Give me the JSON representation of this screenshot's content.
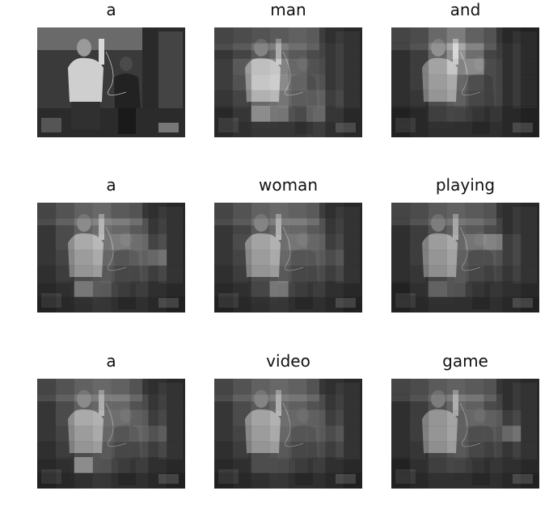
{
  "panels": [
    {
      "word": "a",
      "weights": null
    },
    {
      "word": "man",
      "weights": [
        [
          0.15,
          0.2,
          0.25,
          0.3,
          0.35,
          0.3,
          0.2,
          0.15
        ],
        [
          0.2,
          0.3,
          0.45,
          0.55,
          0.45,
          0.35,
          0.25,
          0.15
        ],
        [
          0.25,
          0.45,
          0.7,
          0.75,
          0.55,
          0.4,
          0.25,
          0.15
        ],
        [
          0.25,
          0.4,
          0.75,
          0.8,
          0.6,
          0.45,
          0.25,
          0.15
        ],
        [
          0.2,
          0.3,
          0.6,
          0.65,
          0.55,
          0.55,
          0.3,
          0.15
        ],
        [
          0.15,
          0.25,
          0.85,
          0.7,
          0.45,
          0.6,
          0.25,
          0.15
        ],
        [
          0.15,
          0.2,
          0.25,
          0.25,
          0.25,
          0.3,
          0.2,
          0.15
        ]
      ]
    },
    {
      "word": "and",
      "weights": [
        [
          0.15,
          0.2,
          0.4,
          0.55,
          0.35,
          0.25,
          0.15,
          0.1
        ],
        [
          0.15,
          0.25,
          0.55,
          0.85,
          0.6,
          0.3,
          0.2,
          0.1
        ],
        [
          0.15,
          0.25,
          0.5,
          0.75,
          0.8,
          0.35,
          0.2,
          0.1
        ],
        [
          0.15,
          0.25,
          0.45,
          0.55,
          0.45,
          0.35,
          0.2,
          0.1
        ],
        [
          0.15,
          0.2,
          0.4,
          0.5,
          0.4,
          0.35,
          0.2,
          0.1
        ],
        [
          0.1,
          0.15,
          0.3,
          0.35,
          0.3,
          0.25,
          0.15,
          0.1
        ],
        [
          0.1,
          0.15,
          0.2,
          0.2,
          0.2,
          0.2,
          0.15,
          0.1
        ]
      ]
    },
    {
      "word": "a",
      "weights": [
        [
          0.15,
          0.25,
          0.35,
          0.4,
          0.3,
          0.25,
          0.2,
          0.15
        ],
        [
          0.2,
          0.35,
          0.5,
          0.6,
          0.55,
          0.45,
          0.25,
          0.15
        ],
        [
          0.2,
          0.35,
          0.55,
          0.65,
          0.7,
          0.6,
          0.35,
          0.15
        ],
        [
          0.2,
          0.3,
          0.45,
          0.55,
          0.5,
          0.55,
          0.6,
          0.15
        ],
        [
          0.15,
          0.25,
          0.4,
          0.45,
          0.4,
          0.4,
          0.3,
          0.15
        ],
        [
          0.15,
          0.2,
          0.7,
          0.5,
          0.35,
          0.3,
          0.2,
          0.15
        ],
        [
          0.1,
          0.15,
          0.2,
          0.25,
          0.2,
          0.2,
          0.15,
          0.1
        ]
      ]
    },
    {
      "word": "woman",
      "weights": [
        [
          0.15,
          0.25,
          0.35,
          0.4,
          0.35,
          0.3,
          0.2,
          0.15
        ],
        [
          0.2,
          0.3,
          0.45,
          0.55,
          0.55,
          0.45,
          0.25,
          0.15
        ],
        [
          0.2,
          0.35,
          0.5,
          0.6,
          0.65,
          0.55,
          0.3,
          0.15
        ],
        [
          0.2,
          0.3,
          0.45,
          0.55,
          0.5,
          0.5,
          0.4,
          0.15
        ],
        [
          0.15,
          0.25,
          0.4,
          0.45,
          0.4,
          0.4,
          0.3,
          0.15
        ],
        [
          0.15,
          0.2,
          0.35,
          0.7,
          0.35,
          0.3,
          0.2,
          0.15
        ],
        [
          0.1,
          0.15,
          0.2,
          0.25,
          0.2,
          0.2,
          0.15,
          0.1
        ]
      ]
    },
    {
      "word": "playing",
      "weights": [
        [
          0.15,
          0.2,
          0.3,
          0.35,
          0.3,
          0.25,
          0.2,
          0.15
        ],
        [
          0.15,
          0.25,
          0.4,
          0.5,
          0.45,
          0.35,
          0.2,
          0.15
        ],
        [
          0.15,
          0.25,
          0.45,
          0.55,
          0.65,
          0.75,
          0.3,
          0.15
        ],
        [
          0.15,
          0.25,
          0.4,
          0.5,
          0.45,
          0.45,
          0.3,
          0.15
        ],
        [
          0.15,
          0.2,
          0.35,
          0.45,
          0.4,
          0.35,
          0.25,
          0.15
        ],
        [
          0.1,
          0.2,
          0.55,
          0.45,
          0.3,
          0.25,
          0.2,
          0.15
        ],
        [
          0.1,
          0.15,
          0.2,
          0.2,
          0.2,
          0.2,
          0.15,
          0.1
        ]
      ]
    },
    {
      "word": "a",
      "weights": [
        [
          0.15,
          0.25,
          0.35,
          0.4,
          0.35,
          0.25,
          0.2,
          0.15
        ],
        [
          0.2,
          0.35,
          0.5,
          0.55,
          0.55,
          0.4,
          0.25,
          0.15
        ],
        [
          0.2,
          0.35,
          0.55,
          0.6,
          0.6,
          0.5,
          0.3,
          0.15
        ],
        [
          0.2,
          0.3,
          0.45,
          0.55,
          0.5,
          0.55,
          0.45,
          0.15
        ],
        [
          0.15,
          0.25,
          0.4,
          0.45,
          0.4,
          0.4,
          0.3,
          0.15
        ],
        [
          0.15,
          0.2,
          0.85,
          0.45,
          0.35,
          0.3,
          0.2,
          0.15
        ],
        [
          0.1,
          0.15,
          0.2,
          0.25,
          0.2,
          0.2,
          0.15,
          0.1
        ]
      ]
    },
    {
      "word": "video",
      "weights": [
        [
          0.15,
          0.25,
          0.35,
          0.4,
          0.35,
          0.25,
          0.2,
          0.15
        ],
        [
          0.2,
          0.35,
          0.45,
          0.55,
          0.5,
          0.4,
          0.25,
          0.15
        ],
        [
          0.2,
          0.35,
          0.5,
          0.6,
          0.55,
          0.5,
          0.3,
          0.15
        ],
        [
          0.2,
          0.3,
          0.45,
          0.55,
          0.5,
          0.5,
          0.4,
          0.15
        ],
        [
          0.15,
          0.25,
          0.4,
          0.45,
          0.4,
          0.4,
          0.3,
          0.15
        ],
        [
          0.15,
          0.2,
          0.4,
          0.4,
          0.35,
          0.3,
          0.2,
          0.15
        ],
        [
          0.1,
          0.15,
          0.2,
          0.25,
          0.2,
          0.2,
          0.15,
          0.1
        ]
      ]
    },
    {
      "word": "game",
      "weights": [
        [
          0.15,
          0.2,
          0.3,
          0.35,
          0.3,
          0.25,
          0.2,
          0.15
        ],
        [
          0.15,
          0.25,
          0.4,
          0.55,
          0.5,
          0.35,
          0.2,
          0.15
        ],
        [
          0.15,
          0.25,
          0.4,
          0.5,
          0.55,
          0.5,
          0.3,
          0.15
        ],
        [
          0.15,
          0.25,
          0.4,
          0.5,
          0.45,
          0.45,
          0.6,
          0.15
        ],
        [
          0.15,
          0.2,
          0.35,
          0.45,
          0.4,
          0.35,
          0.25,
          0.15
        ],
        [
          0.1,
          0.2,
          0.3,
          0.35,
          0.3,
          0.25,
          0.2,
          0.15
        ],
        [
          0.1,
          0.15,
          0.2,
          0.2,
          0.2,
          0.2,
          0.15,
          0.1
        ]
      ]
    }
  ]
}
